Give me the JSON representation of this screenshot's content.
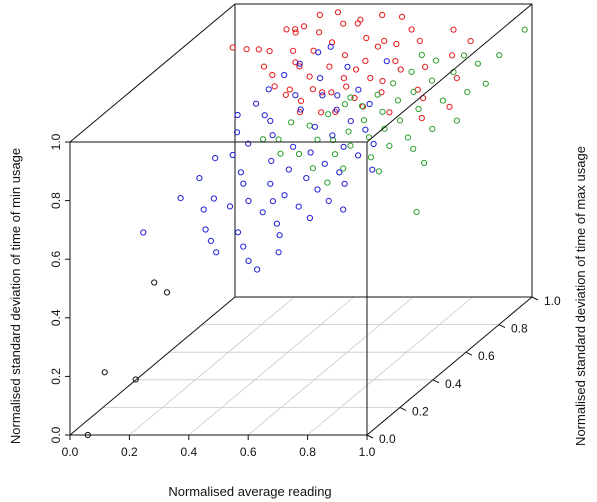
{
  "chart_data": {
    "type": "scatter",
    "title": "",
    "xlabel": "Normalised average reading",
    "ylabel": "Normalised standard deviation of time of max usage",
    "zlabel": "Normalised standard deviation of time of min usage",
    "xlim": [
      0,
      1
    ],
    "ylim": [
      0,
      1
    ],
    "zlim": [
      0,
      1
    ],
    "x_ticks": [
      "0.0",
      "0.2",
      "0.4",
      "0.6",
      "0.8",
      "1.0"
    ],
    "y_ticks": [
      "0.0",
      "0.2",
      "0.4",
      "0.6",
      "0.8",
      "1.0"
    ],
    "z_ticks": [
      "0.0",
      "0.2",
      "0.4",
      "0.6",
      "0.8",
      "1.0"
    ],
    "box": true,
    "floor_grid": true,
    "marker": "open-circle",
    "series": [
      {
        "color": "#e41a1c",
        "points": [
          [
            0.12,
            0.77,
            0.96
          ],
          [
            0.15,
            0.8,
            0.94
          ],
          [
            0.18,
            0.82,
            0.93
          ],
          [
            0.2,
            0.85,
            0.91
          ],
          [
            0.22,
            0.78,
            0.89
          ],
          [
            0.24,
            0.88,
            0.97
          ],
          [
            0.26,
            0.9,
            0.95
          ],
          [
            0.27,
            0.74,
            0.88
          ],
          [
            0.29,
            0.83,
            0.92
          ],
          [
            0.3,
            0.7,
            0.86
          ],
          [
            0.31,
            0.86,
            0.99
          ],
          [
            0.32,
            0.79,
            0.9
          ],
          [
            0.33,
            0.92,
            1.0
          ],
          [
            0.34,
            0.72,
            0.84
          ],
          [
            0.35,
            0.88,
            0.96
          ],
          [
            0.36,
            0.66,
            0.85
          ],
          [
            0.37,
            0.81,
            0.93
          ],
          [
            0.38,
            0.94,
            1.0
          ],
          [
            0.39,
            0.75,
            0.87
          ],
          [
            0.4,
            0.68,
            0.82
          ],
          [
            0.41,
            0.85,
            0.94
          ],
          [
            0.42,
            0.9,
            0.98
          ],
          [
            0.43,
            0.62,
            0.81
          ],
          [
            0.44,
            0.78,
            0.89
          ],
          [
            0.45,
            0.95,
            0.97
          ],
          [
            0.46,
            0.7,
            0.84
          ],
          [
            0.47,
            0.82,
            0.91
          ],
          [
            0.48,
            0.88,
            0.99
          ],
          [
            0.49,
            0.64,
            0.8
          ],
          [
            0.5,
            0.76,
            0.86
          ],
          [
            0.52,
            0.86,
            0.95
          ],
          [
            0.53,
            0.72,
            0.85
          ],
          [
            0.54,
            0.92,
            1.0
          ],
          [
            0.55,
            0.8,
            0.9
          ],
          [
            0.56,
            0.6,
            0.82
          ],
          [
            0.57,
            0.84,
            0.93
          ],
          [
            0.58,
            0.68,
            0.83
          ],
          [
            0.59,
            0.95,
            0.98
          ],
          [
            0.6,
            0.74,
            0.87
          ],
          [
            0.61,
            0.88,
            0.92
          ],
          [
            0.62,
            0.66,
            0.81
          ],
          [
            0.64,
            0.82,
            0.89
          ],
          [
            0.65,
            0.9,
            0.96
          ],
          [
            0.66,
            0.7,
            0.84
          ],
          [
            0.68,
            0.78,
            0.88
          ],
          [
            0.7,
            0.86,
            0.94
          ],
          [
            0.72,
            0.64,
            0.8
          ],
          [
            0.74,
            0.82,
            0.87
          ],
          [
            0.76,
            0.74,
            0.83
          ],
          [
            0.78,
            0.92,
            0.95
          ],
          [
            0.8,
            0.7,
            0.82
          ],
          [
            0.82,
            0.84,
            0.9
          ],
          [
            0.84,
            0.62,
            0.79
          ],
          [
            0.86,
            0.88,
            0.93
          ],
          [
            0.88,
            0.76,
            0.86
          ],
          [
            0.9,
            0.68,
            0.8
          ],
          [
            0.35,
            0.76,
            0.9
          ],
          [
            0.44,
            0.68,
            0.86
          ],
          [
            0.53,
            0.78,
            0.88
          ],
          [
            0.63,
            0.76,
            0.85
          ],
          [
            0.28,
            0.86,
            0.98
          ],
          [
            0.48,
            0.72,
            0.83
          ],
          [
            0.58,
            0.86,
            0.94
          ]
        ]
      },
      {
        "color": "#2ca02c",
        "points": [
          [
            0.45,
            0.36,
            0.84
          ],
          [
            0.48,
            0.4,
            0.82
          ],
          [
            0.5,
            0.44,
            0.86
          ],
          [
            0.52,
            0.34,
            0.8
          ],
          [
            0.54,
            0.48,
            0.83
          ],
          [
            0.56,
            0.38,
            0.78
          ],
          [
            0.58,
            0.52,
            0.85
          ],
          [
            0.6,
            0.42,
            0.81
          ],
          [
            0.62,
            0.55,
            0.87
          ],
          [
            0.63,
            0.46,
            0.79
          ],
          [
            0.64,
            0.32,
            0.76
          ],
          [
            0.65,
            0.6,
            0.84
          ],
          [
            0.66,
            0.5,
            0.8
          ],
          [
            0.67,
            0.4,
            0.77
          ],
          [
            0.68,
            0.64,
            0.86
          ],
          [
            0.69,
            0.54,
            0.82
          ],
          [
            0.7,
            0.44,
            0.78
          ],
          [
            0.71,
            0.68,
            0.88
          ],
          [
            0.72,
            0.36,
            0.74
          ],
          [
            0.73,
            0.58,
            0.83
          ],
          [
            0.74,
            0.48,
            0.79
          ],
          [
            0.75,
            0.72,
            0.9
          ],
          [
            0.76,
            0.62,
            0.85
          ],
          [
            0.77,
            0.52,
            0.8
          ],
          [
            0.78,
            0.42,
            0.75
          ],
          [
            0.79,
            0.66,
            0.86
          ],
          [
            0.8,
            0.56,
            0.81
          ],
          [
            0.81,
            0.76,
            0.92
          ],
          [
            0.82,
            0.46,
            0.77
          ],
          [
            0.83,
            0.7,
            0.88
          ],
          [
            0.84,
            0.6,
            0.83
          ],
          [
            0.86,
            0.5,
            0.78
          ],
          [
            0.88,
            0.74,
            0.89
          ],
          [
            0.9,
            0.64,
            0.84
          ],
          [
            0.92,
            0.54,
            0.79
          ],
          [
            0.94,
            0.78,
            0.9
          ],
          [
            0.96,
            0.68,
            0.85
          ],
          [
            0.98,
            0.58,
            0.8
          ],
          [
            0.99,
            0.82,
            0.91
          ],
          [
            1.0,
            0.72,
            0.86
          ],
          [
            0.6,
            0.62,
            0.86
          ],
          [
            0.7,
            0.3,
            0.72
          ],
          [
            0.74,
            0.8,
            0.92
          ],
          [
            0.84,
            0.36,
            0.73
          ],
          [
            0.9,
            0.46,
            0.76
          ],
          [
            0.97,
            0.4,
            0.74
          ],
          [
            1.02,
            0.92,
            0.95
          ],
          [
            0.86,
            0.84,
            0.9
          ],
          [
            1.0,
            0.3,
            0.62
          ]
        ]
      },
      {
        "color": "#1f1fd6",
        "points": [
          [
            0.22,
            0.62,
            0.8
          ],
          [
            0.24,
            0.58,
            0.76
          ],
          [
            0.26,
            0.66,
            0.82
          ],
          [
            0.27,
            0.5,
            0.72
          ],
          [
            0.28,
            0.7,
            0.85
          ],
          [
            0.3,
            0.54,
            0.74
          ],
          [
            0.31,
            0.74,
            0.88
          ],
          [
            0.32,
            0.46,
            0.68
          ],
          [
            0.33,
            0.62,
            0.78
          ],
          [
            0.34,
            0.78,
            0.9
          ],
          [
            0.35,
            0.42,
            0.66
          ],
          [
            0.36,
            0.58,
            0.75
          ],
          [
            0.37,
            0.7,
            0.83
          ],
          [
            0.38,
            0.82,
            0.92
          ],
          [
            0.39,
            0.38,
            0.62
          ],
          [
            0.4,
            0.5,
            0.7
          ],
          [
            0.41,
            0.66,
            0.8
          ],
          [
            0.42,
            0.76,
            0.86
          ],
          [
            0.43,
            0.44,
            0.65
          ],
          [
            0.44,
            0.56,
            0.72
          ],
          [
            0.45,
            0.72,
            0.82
          ],
          [
            0.46,
            0.34,
            0.6
          ],
          [
            0.47,
            0.48,
            0.68
          ],
          [
            0.48,
            0.62,
            0.76
          ],
          [
            0.49,
            0.8,
            0.88
          ],
          [
            0.5,
            0.4,
            0.63
          ],
          [
            0.51,
            0.54,
            0.71
          ],
          [
            0.52,
            0.68,
            0.79
          ],
          [
            0.53,
            0.3,
            0.58
          ],
          [
            0.54,
            0.46,
            0.66
          ],
          [
            0.55,
            0.6,
            0.74
          ],
          [
            0.56,
            0.74,
            0.83
          ],
          [
            0.57,
            0.36,
            0.61
          ],
          [
            0.58,
            0.5,
            0.69
          ],
          [
            0.59,
            0.64,
            0.77
          ],
          [
            0.6,
            0.42,
            0.64
          ],
          [
            0.61,
            0.56,
            0.72
          ],
          [
            0.62,
            0.7,
            0.8
          ],
          [
            0.63,
            0.32,
            0.59
          ],
          [
            0.64,
            0.48,
            0.67
          ],
          [
            0.65,
            0.62,
            0.75
          ],
          [
            0.66,
            0.38,
            0.62
          ],
          [
            0.67,
            0.54,
            0.7
          ],
          [
            0.68,
            0.44,
            0.65
          ],
          [
            0.7,
            0.58,
            0.72
          ],
          [
            0.72,
            0.36,
            0.6
          ],
          [
            0.74,
            0.5,
            0.67
          ],
          [
            0.2,
            0.52,
            0.7
          ],
          [
            0.18,
            0.46,
            0.66
          ],
          [
            0.15,
            0.4,
            0.62
          ],
          [
            0.25,
            0.36,
            0.6
          ],
          [
            0.29,
            0.3,
            0.56
          ],
          [
            0.33,
            0.26,
            0.54
          ],
          [
            0.37,
            0.22,
            0.52
          ],
          [
            0.41,
            0.28,
            0.56
          ],
          [
            0.45,
            0.24,
            0.53
          ],
          [
            0.49,
            0.2,
            0.5
          ],
          [
            0.53,
            0.18,
            0.48
          ],
          [
            0.3,
            0.64,
            0.79
          ],
          [
            0.4,
            0.86,
            0.92
          ],
          [
            0.5,
            0.72,
            0.82
          ],
          [
            0.6,
            0.84,
            0.88
          ],
          [
            0.45,
            0.42,
            0.6
          ],
          [
            0.55,
            0.28,
            0.55
          ],
          [
            0.35,
            0.34,
            0.62
          ],
          [
            0.58,
            0.22,
            0.52
          ],
          [
            0.24,
            0.44,
            0.6
          ],
          [
            0.08,
            0.3,
            0.55
          ]
        ]
      },
      {
        "color": "#111111",
        "points": [
          [
            0.2,
            0.15,
            0.45
          ],
          [
            0.26,
            0.12,
            0.43
          ],
          [
            0.1,
            0.03,
            0.2
          ],
          [
            0.21,
            0.02,
            0.18
          ],
          [
            0.06,
            0.0,
            0.0
          ]
        ]
      }
    ]
  }
}
